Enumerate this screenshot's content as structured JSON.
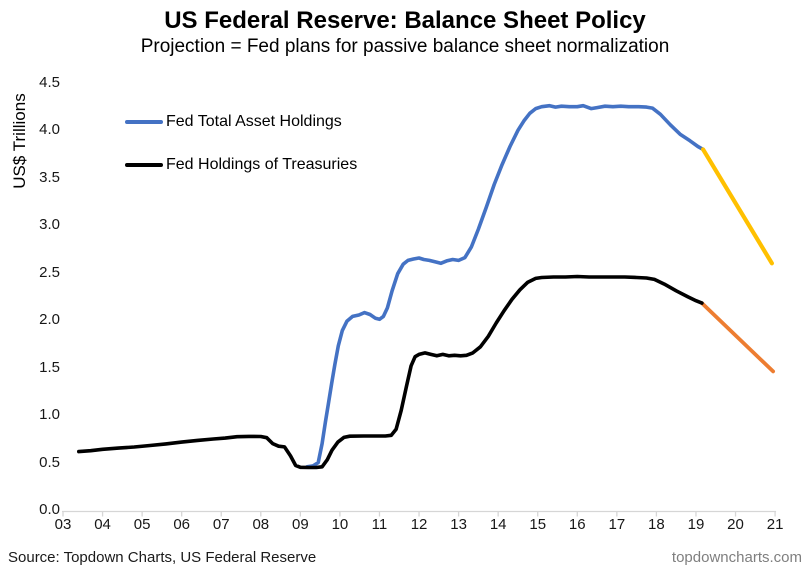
{
  "title": "US Federal Reserve: Balance Sheet Policy",
  "subtitle": "Projection = Fed plans for passive balance sheet normalization",
  "legend": [
    {
      "label": "Fed Total Asset Holdings",
      "color": "#4472C4"
    },
    {
      "label": "Fed Holdings of Treasuries",
      "color": "#000000"
    }
  ],
  "footer": {
    "source": "Source: Topdown Charts, US Federal Reserve",
    "watermark": "topdowncharts.com"
  },
  "colors": {
    "total_assets": "#4472C4",
    "total_assets_projection": "#FFC000",
    "treasuries": "#000000",
    "treasuries_projection": "#ED7D31",
    "axis_line": "#d6d6d6"
  },
  "chart_data": {
    "type": "line",
    "title": "US Federal Reserve: Balance Sheet Policy",
    "subtitle": "Projection = Fed plans for passive balance sheet normalization",
    "xlabel": "",
    "ylabel": "US$ Trillions",
    "ylim": [
      0,
      4.5
    ],
    "ytick_step": 0.5,
    "yticks": [
      "0.0",
      "0.5",
      "1.0",
      "1.5",
      "2.0",
      "2.5",
      "3.0",
      "3.5",
      "4.0",
      "4.5"
    ],
    "xticks": [
      "03",
      "04",
      "05",
      "06",
      "07",
      "08",
      "09",
      "10",
      "11",
      "12",
      "13",
      "14",
      "15",
      "16",
      "17",
      "18",
      "19",
      "20",
      "21"
    ],
    "x_year_start": 2003,
    "x_year_end": 2021,
    "grid": false,
    "legend_position": "top-left-inside",
    "series": [
      {
        "name": "Fed Total Asset Holdings",
        "color": "#4472C4",
        "width": 3.6,
        "points": [
          [
            2009.17,
            0.455
          ],
          [
            2009.32,
            0.465
          ],
          [
            2009.45,
            0.5
          ],
          [
            2009.55,
            0.7
          ],
          [
            2009.63,
            0.92
          ],
          [
            2009.71,
            1.12
          ],
          [
            2009.79,
            1.33
          ],
          [
            2009.87,
            1.53
          ],
          [
            2009.96,
            1.73
          ],
          [
            2010.06,
            1.89
          ],
          [
            2010.18,
            1.99
          ],
          [
            2010.32,
            2.04
          ],
          [
            2010.48,
            2.055
          ],
          [
            2010.62,
            2.08
          ],
          [
            2010.76,
            2.06
          ],
          [
            2010.9,
            2.02
          ],
          [
            2011.0,
            2.01
          ],
          [
            2011.1,
            2.04
          ],
          [
            2011.2,
            2.13
          ],
          [
            2011.32,
            2.31
          ],
          [
            2011.46,
            2.49
          ],
          [
            2011.6,
            2.59
          ],
          [
            2011.72,
            2.63
          ],
          [
            2011.86,
            2.645
          ],
          [
            2012.0,
            2.655
          ],
          [
            2012.12,
            2.64
          ],
          [
            2012.26,
            2.63
          ],
          [
            2012.4,
            2.615
          ],
          [
            2012.55,
            2.6
          ],
          [
            2012.7,
            2.625
          ],
          [
            2012.85,
            2.64
          ],
          [
            2013.0,
            2.63
          ],
          [
            2013.16,
            2.66
          ],
          [
            2013.32,
            2.77
          ],
          [
            2013.5,
            2.96
          ],
          [
            2013.7,
            3.19
          ],
          [
            2013.9,
            3.43
          ],
          [
            2014.1,
            3.64
          ],
          [
            2014.3,
            3.83
          ],
          [
            2014.5,
            4.0
          ],
          [
            2014.65,
            4.1
          ],
          [
            2014.8,
            4.18
          ],
          [
            2014.95,
            4.23
          ],
          [
            2015.1,
            4.25
          ],
          [
            2015.3,
            4.26
          ],
          [
            2015.45,
            4.245
          ],
          [
            2015.6,
            4.255
          ],
          [
            2015.8,
            4.25
          ],
          [
            2016.0,
            4.25
          ],
          [
            2016.15,
            4.26
          ],
          [
            2016.35,
            4.23
          ],
          [
            2016.5,
            4.24
          ],
          [
            2016.7,
            4.255
          ],
          [
            2016.9,
            4.25
          ],
          [
            2017.1,
            4.255
          ],
          [
            2017.3,
            4.25
          ],
          [
            2017.55,
            4.25
          ],
          [
            2017.75,
            4.245
          ],
          [
            2017.9,
            4.235
          ],
          [
            2018.1,
            4.17
          ],
          [
            2018.35,
            4.06
          ],
          [
            2018.6,
            3.96
          ],
          [
            2018.85,
            3.89
          ],
          [
            2019.05,
            3.83
          ],
          [
            2019.18,
            3.8
          ]
        ]
      },
      {
        "name": "Fed Total Asset Holdings (projection)",
        "color": "#FFC000",
        "width": 4.2,
        "points": [
          [
            2019.18,
            3.8
          ],
          [
            2020.92,
            2.6
          ]
        ]
      },
      {
        "name": "Fed Holdings of Treasuries (projection)",
        "color": "#ED7D31",
        "width": 3.8,
        "points": [
          [
            2019.15,
            2.18
          ],
          [
            2020.95,
            1.46
          ]
        ]
      },
      {
        "name": "Fed Holdings of Treasuries",
        "color": "#000000",
        "width": 3.6,
        "points": [
          [
            2003.4,
            0.615
          ],
          [
            2003.7,
            0.625
          ],
          [
            2004.0,
            0.64
          ],
          [
            2004.4,
            0.652
          ],
          [
            2004.8,
            0.664
          ],
          [
            2005.2,
            0.68
          ],
          [
            2005.6,
            0.697
          ],
          [
            2006.0,
            0.715
          ],
          [
            2006.4,
            0.733
          ],
          [
            2006.8,
            0.748
          ],
          [
            2007.1,
            0.758
          ],
          [
            2007.4,
            0.772
          ],
          [
            2007.7,
            0.776
          ],
          [
            2008.0,
            0.775
          ],
          [
            2008.15,
            0.762
          ],
          [
            2008.3,
            0.7
          ],
          [
            2008.45,
            0.672
          ],
          [
            2008.6,
            0.665
          ],
          [
            2008.75,
            0.57
          ],
          [
            2008.88,
            0.47
          ],
          [
            2009.0,
            0.45
          ],
          [
            2009.2,
            0.448
          ],
          [
            2009.4,
            0.448
          ],
          [
            2009.55,
            0.455
          ],
          [
            2009.68,
            0.53
          ],
          [
            2009.8,
            0.63
          ],
          [
            2009.95,
            0.715
          ],
          [
            2010.1,
            0.765
          ],
          [
            2010.25,
            0.778
          ],
          [
            2010.6,
            0.78
          ],
          [
            2010.9,
            0.78
          ],
          [
            2011.15,
            0.78
          ],
          [
            2011.3,
            0.787
          ],
          [
            2011.42,
            0.85
          ],
          [
            2011.55,
            1.05
          ],
          [
            2011.68,
            1.3
          ],
          [
            2011.8,
            1.52
          ],
          [
            2011.9,
            1.615
          ],
          [
            2012.0,
            1.64
          ],
          [
            2012.15,
            1.655
          ],
          [
            2012.3,
            1.64
          ],
          [
            2012.45,
            1.625
          ],
          [
            2012.6,
            1.64
          ],
          [
            2012.75,
            1.625
          ],
          [
            2012.9,
            1.63
          ],
          [
            2013.05,
            1.625
          ],
          [
            2013.2,
            1.63
          ],
          [
            2013.36,
            1.655
          ],
          [
            2013.55,
            1.72
          ],
          [
            2013.75,
            1.83
          ],
          [
            2013.95,
            1.97
          ],
          [
            2014.15,
            2.1
          ],
          [
            2014.35,
            2.22
          ],
          [
            2014.55,
            2.32
          ],
          [
            2014.75,
            2.4
          ],
          [
            2014.95,
            2.44
          ],
          [
            2015.1,
            2.45
          ],
          [
            2015.4,
            2.455
          ],
          [
            2015.7,
            2.455
          ],
          [
            2016.0,
            2.46
          ],
          [
            2016.3,
            2.455
          ],
          [
            2016.6,
            2.455
          ],
          [
            2016.9,
            2.455
          ],
          [
            2017.2,
            2.455
          ],
          [
            2017.5,
            2.45
          ],
          [
            2017.75,
            2.445
          ],
          [
            2017.95,
            2.43
          ],
          [
            2018.2,
            2.38
          ],
          [
            2018.5,
            2.31
          ],
          [
            2018.8,
            2.245
          ],
          [
            2019.0,
            2.205
          ],
          [
            2019.15,
            2.18
          ]
        ]
      }
    ]
  }
}
